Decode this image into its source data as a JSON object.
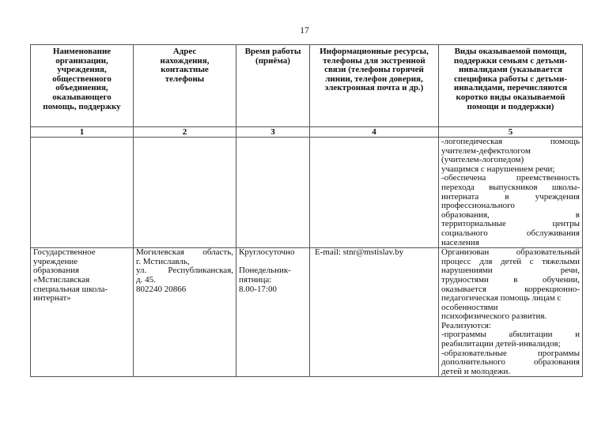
{
  "page_number": "17",
  "headers": [
    "Наименование организации, учреждения, общественного объединения, оказывающего помощь, поддержку",
    "Адрес нахождения, контактные телефоны",
    "Время работы (приёма)",
    "Информационные ресурсы, телефоны для экстренной связи (телефоны горячей линии, телефон доверия, электронная почта и др.)",
    "Виды оказываемой помощи, поддержки семьям с детьми-инвалидами (указывается специфика работы с детьми-инвалидами, перечисляются коротко виды оказываемой помощи и поддержки)"
  ],
  "column_numbers": [
    "1",
    "2",
    "3",
    "4",
    "5"
  ],
  "rows": [
    {
      "col5_lines": [
        "-логопедическая помощь",
        "учителем-дефектологом",
        "(учителем-логопедом)",
        "учащимся с нарушением речи;",
        "-обеспечена преемственность",
        "перехода выпускников школы-",
        "интерната в учреждения",
        "профессионального",
        "образования, в",
        "территориальные центры",
        "социального обслуживания",
        "населения"
      ]
    },
    {
      "organization": "Государственное учреждение образования «Мстиславская специальная школа-интернат»",
      "address_lines": [
        "Могилевская область,",
        "г. Мстиславль,",
        "ул. Республиканская,",
        "д. 45.",
        "802240 20866"
      ],
      "hours_lines": [
        "Круглосуточно",
        "",
        "Понедельник-",
        "пятница:",
        "8.00-17:00"
      ],
      "contacts": "E-mail: stnr@mstislav.by",
      "col5_lines": [
        "Организован образовательный",
        "процесс для детей с тяжелыми",
        "нарушениями речи,",
        "трудностями в обучении,",
        "оказывается коррекционно-",
        "педагогическая помощь лицам с",
        "особенностями",
        "психофизического развития.",
        "Реализуются:",
        "-программы абилитации и",
        "реабилитации детей-инвалидов;",
        "-образовательные программы",
        "дополнительного образования",
        "детей и молодежи."
      ]
    }
  ]
}
